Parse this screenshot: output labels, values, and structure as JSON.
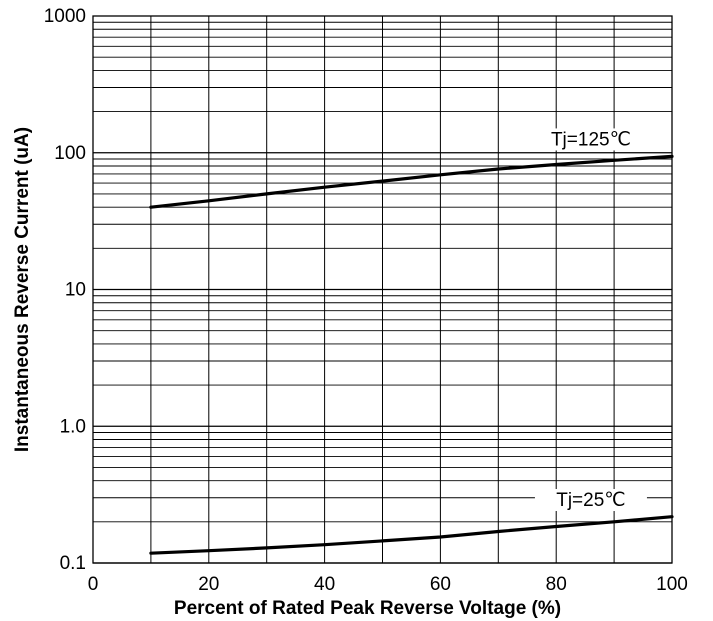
{
  "chart_data": {
    "type": "line",
    "title": "",
    "xlabel": "Percent of Rated Peak Reverse Voltage  (%)",
    "ylabel": "Instantaneous Reverse Current (uA)",
    "x_scale": "linear",
    "y_scale": "log",
    "xlim": [
      0,
      100
    ],
    "ylim": [
      0.1,
      1000
    ],
    "grid": true,
    "x_ticks": [
      {
        "value": 0,
        "label": "0"
      },
      {
        "value": 20,
        "label": "20"
      },
      {
        "value": 40,
        "label": "40"
      },
      {
        "value": 60,
        "label": "60"
      },
      {
        "value": 80,
        "label": "80"
      },
      {
        "value": 100,
        "label": "100"
      }
    ],
    "y_ticks": [
      {
        "value": 0.1,
        "label": "0.1"
      },
      {
        "value": 1,
        "label": "1.0"
      },
      {
        "value": 10,
        "label": "10"
      },
      {
        "value": 100,
        "label": "100"
      },
      {
        "value": 1000,
        "label": "1000"
      }
    ],
    "series": [
      {
        "name": "Tj=125℃",
        "x": [
          10,
          20,
          30,
          40,
          50,
          60,
          70,
          80,
          90,
          100
        ],
        "y": [
          40,
          44.5,
          50,
          56,
          62,
          69,
          76,
          82,
          88,
          94
        ]
      },
      {
        "name": "Tj=25℃",
        "x": [
          10,
          20,
          30,
          40,
          50,
          60,
          70,
          80,
          90,
          100
        ],
        "y": [
          0.118,
          0.123,
          0.129,
          0.136,
          0.145,
          0.155,
          0.17,
          0.185,
          0.2,
          0.218
        ]
      }
    ]
  }
}
